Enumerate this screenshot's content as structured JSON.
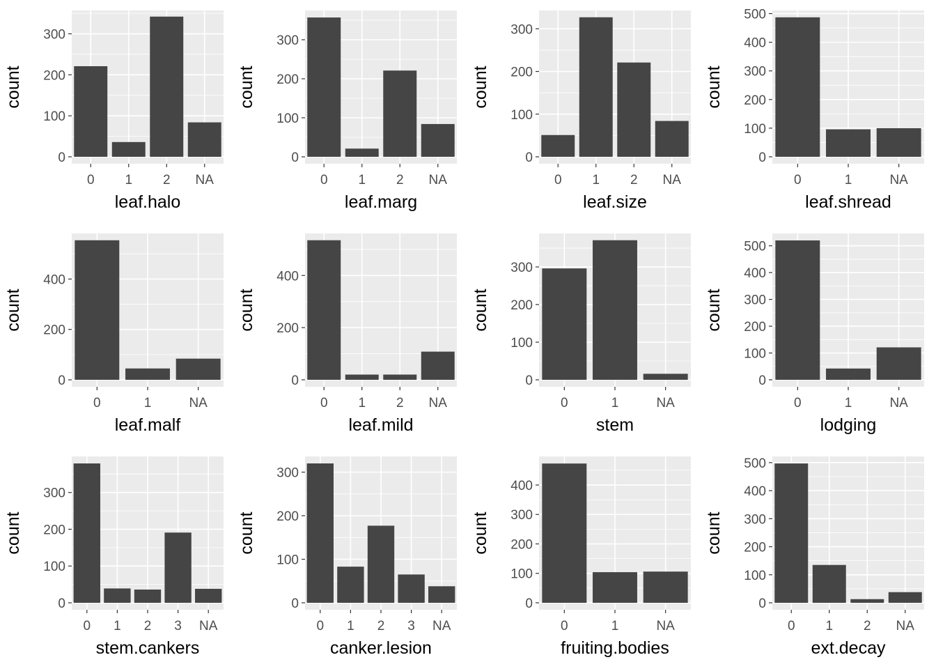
{
  "colors": {
    "panel_bg": "#ebebeb",
    "grid_major": "#ffffff",
    "bar": "#454545",
    "tick_text": "#4d4d4d",
    "title_text": "#000000",
    "axis_tick": "#333333"
  },
  "chart_data": [
    {
      "type": "bar",
      "xlabel": "leaf.halo",
      "ylabel": "count",
      "categories": [
        "0",
        "1",
        "2",
        "NA"
      ],
      "values": [
        221,
        36,
        342,
        84
      ],
      "ylim": [
        0,
        357
      ],
      "yticks": [
        0,
        100,
        200,
        300
      ]
    },
    {
      "type": "bar",
      "xlabel": "leaf.marg",
      "ylabel": "count",
      "categories": [
        "0",
        "1",
        "2",
        "NA"
      ],
      "values": [
        357,
        21,
        221,
        84
      ],
      "ylim": [
        0,
        375
      ],
      "yticks": [
        0,
        100,
        200,
        300
      ]
    },
    {
      "type": "bar",
      "xlabel": "leaf.size",
      "ylabel": "count",
      "categories": [
        "0",
        "1",
        "2",
        "NA"
      ],
      "values": [
        51,
        327,
        221,
        84
      ],
      "ylim": [
        0,
        343
      ],
      "yticks": [
        0,
        100,
        200,
        300
      ]
    },
    {
      "type": "bar",
      "xlabel": "leaf.shread",
      "ylabel": "count",
      "categories": [
        "0",
        "1",
        "NA"
      ],
      "values": [
        487,
        96,
        100
      ],
      "ylim": [
        0,
        511
      ],
      "yticks": [
        0,
        100,
        200,
        300,
        400,
        500
      ]
    },
    {
      "type": "bar",
      "xlabel": "leaf.malf",
      "ylabel": "count",
      "categories": [
        "0",
        "1",
        "NA"
      ],
      "values": [
        554,
        45,
        84
      ],
      "ylim": [
        0,
        581
      ],
      "yticks": [
        0,
        200,
        400
      ]
    },
    {
      "type": "bar",
      "xlabel": "leaf.mild",
      "ylabel": "count",
      "categories": [
        "0",
        "1",
        "2",
        "NA"
      ],
      "values": [
        535,
        20,
        20,
        108
      ],
      "ylim": [
        0,
        561
      ],
      "yticks": [
        0,
        200,
        400
      ]
    },
    {
      "type": "bar",
      "xlabel": "stem",
      "ylabel": "count",
      "categories": [
        "0",
        "1",
        "NA"
      ],
      "values": [
        296,
        371,
        16
      ],
      "ylim": [
        0,
        389
      ],
      "yticks": [
        0,
        100,
        200,
        300
      ]
    },
    {
      "type": "bar",
      "xlabel": "lodging",
      "ylabel": "count",
      "categories": [
        "0",
        "1",
        "NA"
      ],
      "values": [
        520,
        42,
        121
      ],
      "ylim": [
        0,
        546
      ],
      "yticks": [
        0,
        100,
        200,
        300,
        400,
        500
      ]
    },
    {
      "type": "bar",
      "xlabel": "stem.cankers",
      "ylabel": "count",
      "categories": [
        "0",
        "1",
        "2",
        "3",
        "NA"
      ],
      "values": [
        379,
        39,
        36,
        191,
        38
      ],
      "ylim": [
        0,
        398
      ],
      "yticks": [
        0,
        100,
        200,
        300
      ]
    },
    {
      "type": "bar",
      "xlabel": "canker.lesion",
      "ylabel": "count",
      "categories": [
        "0",
        "1",
        "2",
        "3",
        "NA"
      ],
      "values": [
        320,
        83,
        177,
        65,
        38
      ],
      "ylim": [
        0,
        336
      ],
      "yticks": [
        0,
        100,
        200,
        300
      ]
    },
    {
      "type": "bar",
      "xlabel": "fruiting.bodies",
      "ylabel": "count",
      "categories": [
        "0",
        "1",
        "NA"
      ],
      "values": [
        473,
        104,
        106
      ],
      "ylim": [
        0,
        497
      ],
      "yticks": [
        0,
        100,
        200,
        300,
        400
      ]
    },
    {
      "type": "bar",
      "xlabel": "ext.decay",
      "ylabel": "count",
      "categories": [
        "0",
        "1",
        "2",
        "NA"
      ],
      "values": [
        497,
        135,
        13,
        38
      ],
      "ylim": [
        0,
        522
      ],
      "yticks": [
        0,
        100,
        200,
        300,
        400,
        500
      ]
    }
  ]
}
